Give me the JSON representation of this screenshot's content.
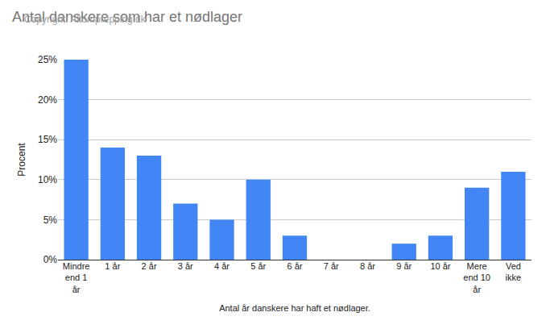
{
  "chart_data": {
    "type": "bar",
    "title": "Antal danskere som har et nødlager",
    "subtitle": "Copyright: Altomprepping.dk",
    "xlabel": "Antal år danskere har haft et nødlager.",
    "ylabel": "Procent",
    "categories": [
      "Mindre end 1 år",
      "1 år",
      "2 år",
      "3 år",
      "4 år",
      "5 år",
      "6 år",
      "7 år",
      "8 år",
      "9 år",
      "10 år",
      "Mere end 10 år",
      "Ved ikke"
    ],
    "values": [
      25,
      14,
      13,
      7,
      5,
      10,
      3,
      0,
      0,
      2,
      3,
      9,
      11
    ],
    "color": "#4285f4",
    "ylim": [
      0,
      25
    ],
    "yticks": [
      {
        "value": 0,
        "label": "0%"
      },
      {
        "value": 5,
        "label": "5%"
      },
      {
        "value": 10,
        "label": "10%"
      },
      {
        "value": 15,
        "label": "15%"
      },
      {
        "value": 20,
        "label": "20%"
      },
      {
        "value": 25,
        "label": "25%"
      }
    ],
    "grid": true
  }
}
